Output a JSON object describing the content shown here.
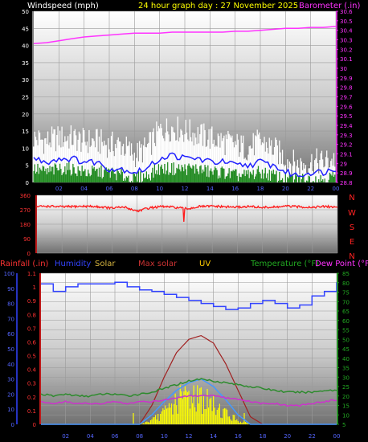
{
  "header": {
    "wind_label": "Windspeed (mph)",
    "date_label": "24 hour graph day : 27 November 2025",
    "baro_label": "Barometer (.in)"
  },
  "bottom_header": {
    "rain": "Rainfall (.in)",
    "humidity": "Humidity",
    "solar": "Solar",
    "maxsolar": "Max solar",
    "uv": "UV",
    "temp": "Temperature (°F)",
    "dew": "Dew Point (°F)"
  },
  "colors": {
    "wind_gust": "#ffffff",
    "wind_avg": "#228b22",
    "wind_line": "#2020ff",
    "barometer": "#ff33ff",
    "direction": "#ff1a1a",
    "humidity": "#3344ff",
    "temperature": "#2e8b2e",
    "dew_point": "#cc33cc",
    "max_solar": "#a02020",
    "solar": "#ffff00",
    "uv": "#4499ff",
    "rain": "#0000ff"
  },
  "chart_data": [
    {
      "type": "line",
      "id": "wind",
      "x_ticks": [
        "02",
        "04",
        "06",
        "08",
        "10",
        "12",
        "14",
        "16",
        "18",
        "20",
        "22",
        "00"
      ],
      "y_left_ticks": [
        "0",
        "5",
        "10",
        "15",
        "20",
        "25",
        "30",
        "35",
        "40",
        "45",
        "50"
      ],
      "y_right_ticks": [
        "28.8",
        "28.9",
        "29",
        "29.1",
        "29.2",
        "29.3",
        "29.4",
        "29.5",
        "29.6",
        "29.7",
        "29.8",
        "29.9",
        "30",
        "30.1",
        "30.2",
        "30.3",
        "30.4",
        "30.5",
        "30.6"
      ],
      "ylim_left": [
        0,
        50
      ],
      "ylim_right": [
        28.8,
        30.6
      ],
      "x_hours": [
        0,
        1,
        2,
        3,
        4,
        5,
        6,
        7,
        8,
        9,
        10,
        11,
        12,
        13,
        14,
        15,
        16,
        17,
        18,
        19,
        20,
        21,
        22,
        23,
        24
      ],
      "series": [
        {
          "key": "gust",
          "values": [
            13,
            12,
            13,
            13,
            12,
            12,
            11,
            11,
            8,
            10,
            15,
            16,
            15,
            14,
            13,
            12,
            11,
            10,
            12,
            10,
            7,
            5,
            6,
            6,
            7
          ]
        },
        {
          "key": "avg_line",
          "values": [
            7,
            6,
            7,
            7,
            6,
            6,
            4,
            4,
            3,
            4,
            7,
            8,
            7,
            7,
            6,
            6,
            5,
            5,
            6,
            5,
            3,
            2,
            3,
            3,
            4
          ]
        },
        {
          "key": "avg",
          "values": [
            4,
            3,
            4,
            4,
            3,
            3,
            3,
            2,
            1,
            2,
            4,
            4,
            4,
            4,
            3,
            3,
            2,
            2,
            3,
            2,
            1,
            1,
            1,
            1,
            2
          ]
        },
        {
          "key": "barometer",
          "values": [
            30.26,
            30.27,
            30.29,
            30.31,
            30.33,
            30.34,
            30.35,
            30.36,
            30.37,
            30.37,
            30.37,
            30.38,
            30.38,
            30.38,
            30.38,
            30.38,
            30.39,
            30.39,
            30.4,
            30.41,
            30.42,
            30.42,
            30.43,
            30.43,
            30.44
          ]
        }
      ]
    },
    {
      "type": "line",
      "id": "direction",
      "x_ticks": [
        "02",
        "04",
        "06",
        "08",
        "10",
        "12",
        "14",
        "16",
        "18",
        "20",
        "22",
        "00"
      ],
      "y_left_ticks": [
        "360",
        "270",
        "180",
        "90",
        "0"
      ],
      "compass": [
        "N",
        "W",
        "S",
        "E",
        "N"
      ],
      "ylim": [
        0,
        360
      ],
      "series": [
        {
          "key": "direction",
          "values": [
            290,
            292,
            288,
            290,
            292,
            288,
            280,
            286,
            262,
            282,
            290,
            285,
            276,
            290,
            292,
            288,
            286,
            290,
            284,
            286,
            292,
            288,
            286,
            290,
            286
          ]
        }
      ]
    },
    {
      "type": "line",
      "id": "multi",
      "x_ticks": [
        "02",
        "04",
        "06",
        "08",
        "10",
        "12",
        "14",
        "16",
        "18",
        "20",
        "22",
        "00"
      ],
      "y_humidity_ticks": [
        "0",
        "10",
        "20",
        "30",
        "40",
        "50",
        "60",
        "70",
        "80",
        "90",
        "100"
      ],
      "y_rain_ticks": [
        "0",
        "0.1",
        "0.2",
        "0.3",
        "0.4",
        "0.5",
        "0.6",
        "0.7",
        "0.8",
        "0.9",
        "1",
        "1.1"
      ],
      "y_temp_ticks": [
        "5",
        "10",
        "15",
        "20",
        "25",
        "30",
        "35",
        "40",
        "45",
        "50",
        "55",
        "60",
        "65",
        "70",
        "75",
        "80",
        "85"
      ],
      "series": [
        {
          "key": "humidity",
          "values": [
            93,
            88,
            91,
            93,
            93,
            93,
            94,
            91,
            89,
            88,
            86,
            84,
            82,
            80,
            78,
            76,
            77,
            80,
            82,
            80,
            77,
            79,
            85,
            88,
            94
          ]
        },
        {
          "key": "temperature",
          "values": [
            21,
            20,
            21,
            20,
            20,
            21,
            21,
            20,
            21,
            22,
            24,
            26,
            28,
            29,
            28,
            27,
            26,
            25,
            24,
            23,
            22,
            22,
            22,
            23,
            23
          ]
        },
        {
          "key": "dew_point",
          "values": [
            17,
            16,
            17,
            16,
            16,
            16,
            17,
            16,
            17,
            17,
            18,
            19,
            20,
            20,
            20,
            19,
            18,
            17,
            16,
            16,
            15,
            15,
            16,
            17,
            18
          ]
        },
        {
          "key": "max_solar",
          "values": [
            0,
            0,
            0,
            0,
            0,
            0,
            0,
            0,
            0,
            10,
            25,
            38,
            45,
            47,
            43,
            32,
            18,
            4,
            0,
            0,
            0,
            0,
            0,
            0,
            0
          ]
        },
        {
          "key": "solar",
          "values": [
            0,
            0,
            0,
            0,
            0,
            0,
            0,
            0,
            0,
            2,
            6,
            12,
            16,
            14,
            10,
            6,
            2,
            0,
            0,
            0,
            0,
            0,
            0,
            0,
            0
          ]
        },
        {
          "key": "uv",
          "values": [
            0,
            0,
            0,
            0,
            0,
            0,
            0,
            0,
            0,
            0.5,
            1.2,
            1.8,
            2.2,
            2.4,
            2.0,
            1.3,
            0.5,
            0,
            0,
            0,
            0,
            0,
            0,
            0,
            0
          ]
        },
        {
          "key": "rain",
          "values": [
            0,
            0,
            0,
            0,
            0,
            0,
            0,
            0,
            0,
            0,
            0,
            0,
            0,
            0,
            0,
            0,
            0,
            0,
            0,
            0,
            0,
            0,
            0,
            0,
            0
          ]
        }
      ]
    }
  ]
}
